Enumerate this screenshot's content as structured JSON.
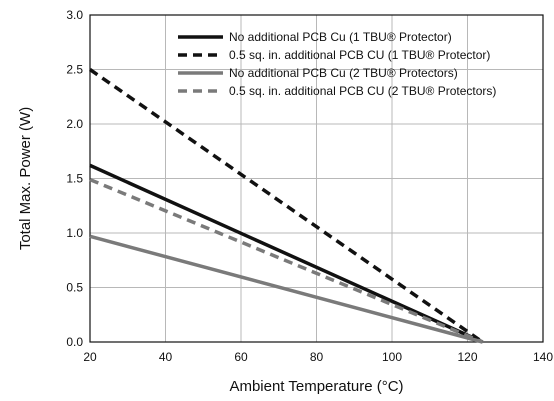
{
  "chart_data": {
    "type": "line",
    "xlabel": "Ambient Temperature (°C)",
    "ylabel": "Total Max. Power (W)",
    "xlim": [
      20,
      140
    ],
    "ylim": [
      0,
      3.0
    ],
    "xticks": [
      "20",
      "40",
      "60",
      "80",
      "100",
      "120",
      "140"
    ],
    "yticks": [
      "0.0",
      "0.5",
      "1.0",
      "1.5",
      "2.0",
      "2.5",
      "3.0"
    ],
    "grid": true,
    "legend_position": "top-right",
    "series": [
      {
        "name": "No additional PCB Cu (1 TBU® Protector)",
        "color": "#111111",
        "dash": "solid",
        "x": [
          20,
          124
        ],
        "y": [
          1.62,
          0.0
        ]
      },
      {
        "name": "0.5 sq. in. additional PCB CU (1 TBU® Protector)",
        "color": "#111111",
        "dash": "dashed",
        "x": [
          20,
          124
        ],
        "y": [
          2.5,
          0.0
        ]
      },
      {
        "name": "No additional PCB Cu (2 TBU® Protectors)",
        "color": "#7a7a7a",
        "dash": "solid",
        "x": [
          20,
          124
        ],
        "y": [
          0.97,
          0.0
        ]
      },
      {
        "name": "0.5 sq. in. additional PCB CU (2 TBU® Protectors)",
        "color": "#7a7a7a",
        "dash": "dashed",
        "x": [
          20,
          124
        ],
        "y": [
          1.49,
          0.0
        ]
      }
    ]
  }
}
